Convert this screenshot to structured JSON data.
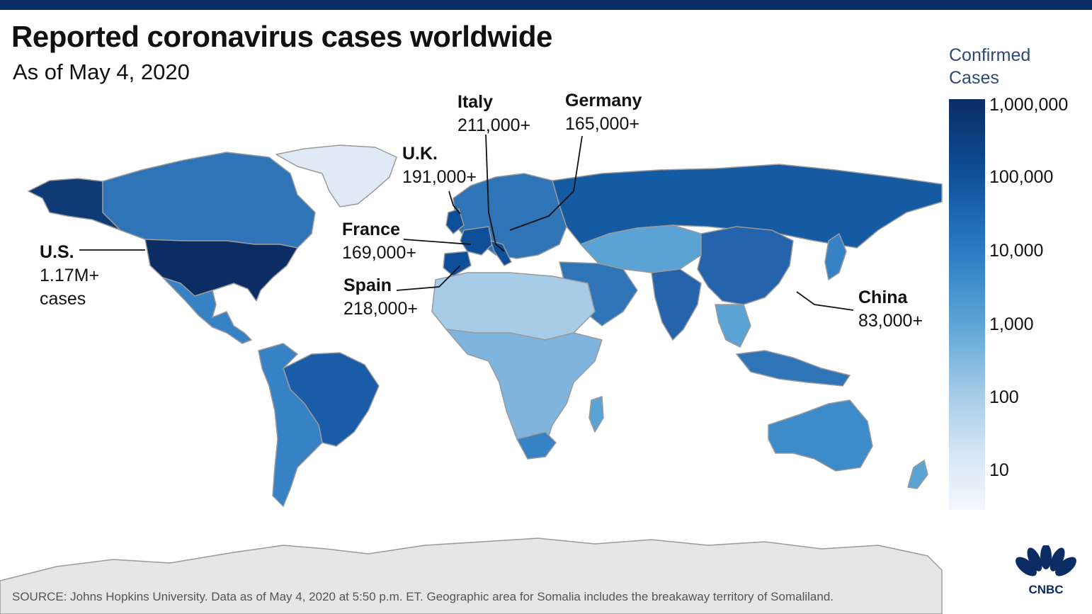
{
  "header": {
    "title": "Reported coronavirus cases worldwide",
    "subtitle": "As of May 4, 2020"
  },
  "callouts": {
    "us": {
      "name": "U.S.",
      "value": "1.17M+",
      "extra": "cases"
    },
    "uk": {
      "name": "U.K.",
      "value": "191,000+"
    },
    "italy": {
      "name": "Italy",
      "value": "211,000+"
    },
    "germany": {
      "name": "Germany",
      "value": "165,000+"
    },
    "france": {
      "name": "France",
      "value": "169,000+"
    },
    "spain": {
      "name": "Spain",
      "value": "218,000+"
    },
    "china": {
      "name": "China",
      "value": "83,000+"
    }
  },
  "legend": {
    "title": "Confirmed Cases",
    "ticks": [
      "1,000,000",
      "100,000",
      "10,000",
      "1,000",
      "100",
      "10"
    ],
    "colors": {
      "max": "#0b2d63",
      "high": "#0f4f99",
      "mid": "#2a79c1",
      "low": "#8fbde3",
      "min": "#f4f8fd",
      "no_data": "#e6e6e6"
    }
  },
  "source": "SOURCE: Johns Hopkins University. Data as of May 4, 2020 at 5:50 p.m. ET. Geographic area for Somalia includes the breakaway territory of Somaliland.",
  "brand": {
    "logo": "CNBC",
    "logo_icon": "peacock-icon"
  }
}
